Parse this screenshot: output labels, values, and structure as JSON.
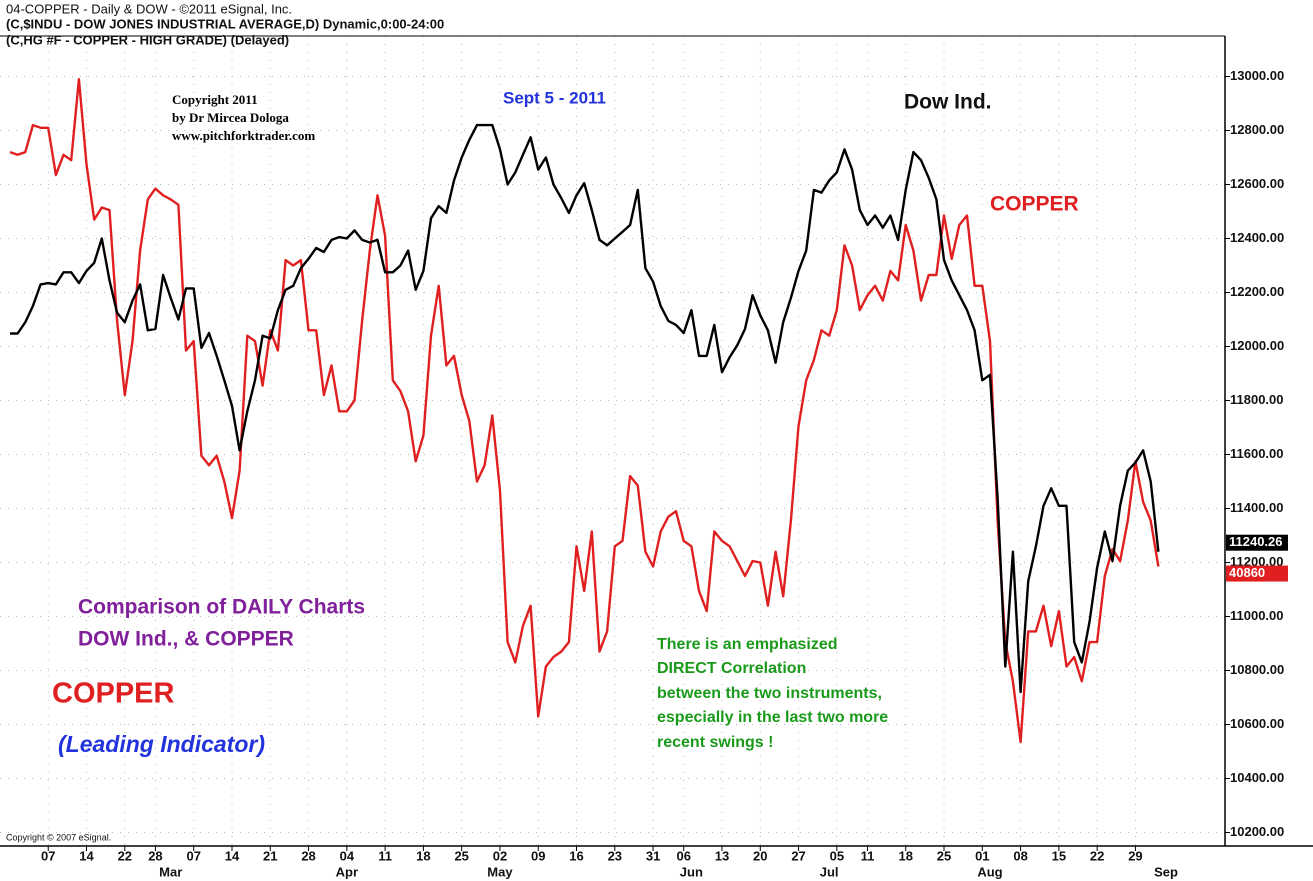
{
  "chart_data": {
    "type": "line",
    "header": [
      "04-COPPER - Daily & DOW - ©2011 eSignal, Inc.",
      "(C,$INDU - DOW JONES INDUSTRIAL AVERAGE,D) Dynamic,0:00-24:00",
      "(C,HG #F - COPPER - HIGH GRADE)  (Delayed)"
    ],
    "copyright_author": [
      "Copyright 2011",
      "by Dr Mircea Dologa",
      "www.pitchforktrader.com"
    ],
    "date_note": "Sept 5  - 2011",
    "dow_label": "Dow Ind.",
    "copper_label": "COPPER",
    "comparison": [
      "Comparison of DAILY Charts",
      "DOW Ind.,  &  COPPER"
    ],
    "copper_big": "COPPER",
    "leading": "(Leading Indicator)",
    "correlation_note": [
      "There is an emphasized",
      "DIRECT Correlation",
      "between the two instruments,",
      "especially in the last two more",
      "recent swings  !"
    ],
    "vendor_copyright": "Copyright © 2007 eSignal.",
    "last_labels": [
      {
        "label": "11240.26",
        "color": "#000000"
      },
      {
        "label": "40860",
        "color": "#e02020"
      }
    ],
    "xlim": [
      -1.3,
      158.7
    ],
    "xticks": [
      {
        "value": 5,
        "label": "07"
      },
      {
        "value": 10,
        "label": "14"
      },
      {
        "value": 15,
        "label": "22"
      },
      {
        "value": 19,
        "label": "28"
      },
      {
        "value": 24,
        "label": "07"
      },
      {
        "value": 29,
        "label": "14"
      },
      {
        "value": 34,
        "label": "21"
      },
      {
        "value": 39,
        "label": "28"
      },
      {
        "value": 44,
        "label": "04"
      },
      {
        "value": 49,
        "label": "11"
      },
      {
        "value": 54,
        "label": "18"
      },
      {
        "value": 59,
        "label": "25"
      },
      {
        "value": 64,
        "label": "02"
      },
      {
        "value": 69,
        "label": "09"
      },
      {
        "value": 74,
        "label": "16"
      },
      {
        "value": 79,
        "label": "23"
      },
      {
        "value": 84,
        "label": "31"
      },
      {
        "value": 88,
        "label": "06"
      },
      {
        "value": 93,
        "label": "13"
      },
      {
        "value": 98,
        "label": "20"
      },
      {
        "value": 103,
        "label": "27"
      },
      {
        "value": 108,
        "label": "05"
      },
      {
        "value": 112,
        "label": "11"
      },
      {
        "value": 117,
        "label": "18"
      },
      {
        "value": 122,
        "label": "25"
      },
      {
        "value": 127,
        "label": "01"
      },
      {
        "value": 132,
        "label": "08"
      },
      {
        "value": 137,
        "label": "15"
      },
      {
        "value": 142,
        "label": "22"
      },
      {
        "value": 147,
        "label": "29"
      }
    ],
    "months": [
      {
        "value": 21,
        "label": "Mar"
      },
      {
        "value": 44,
        "label": "Apr"
      },
      {
        "value": 64,
        "label": "May"
      },
      {
        "value": 89,
        "label": "Jun"
      },
      {
        "value": 107,
        "label": "Jul"
      },
      {
        "value": 128,
        "label": "Aug"
      },
      {
        "value": 151,
        "label": "Sep"
      }
    ],
    "ylim": [
      10150,
      13150
    ],
    "yticks": [
      {
        "value": 10200,
        "label": "10200.00"
      },
      {
        "value": 10400,
        "label": "10400.00"
      },
      {
        "value": 10600,
        "label": "10600.00"
      },
      {
        "value": 10800,
        "label": "10800.00"
      },
      {
        "value": 11000,
        "label": "11000.00"
      },
      {
        "value": 11200,
        "label": "11200.00"
      },
      {
        "value": 11400,
        "label": "11400.00"
      },
      {
        "value": 11600,
        "label": "11600.00"
      },
      {
        "value": 11800,
        "label": "11800.00"
      },
      {
        "value": 12000,
        "label": "12000.00"
      },
      {
        "value": 12200,
        "label": "12200.00"
      },
      {
        "value": 12400,
        "label": "12400.00"
      },
      {
        "value": 12600,
        "label": "12600.00"
      },
      {
        "value": 12800,
        "label": "12800.00"
      },
      {
        "value": 13000,
        "label": "13000.00"
      }
    ],
    "grid": true,
    "series": [
      {
        "color": "#000000",
        "values": [
          12048,
          12048,
          12090,
          12150,
          12230,
          12235,
          12230,
          12275,
          12275,
          12235,
          12280,
          12310,
          12400,
          12245,
          12125,
          12090,
          12170,
          12230,
          12060,
          12065,
          12265,
          12180,
          12100,
          12215,
          12215,
          11995,
          12050,
          11965,
          11875,
          11780,
          11615,
          11760,
          11875,
          12040,
          12030,
          12135,
          12210,
          12225,
          12290,
          12325,
          12365,
          12350,
          12395,
          12405,
          12400,
          12430,
          12395,
          12385,
          12395,
          12275,
          12275,
          12300,
          12355,
          12210,
          12280,
          12475,
          12520,
          12495,
          12615,
          12700,
          12765,
          12820,
          12820,
          12820,
          12730,
          12600,
          12645,
          12710,
          12775,
          12655,
          12700,
          12600,
          12550,
          12495,
          12560,
          12605,
          12505,
          12395,
          12375,
          12400,
          12425,
          12450,
          12580,
          12290,
          12240,
          12150,
          12095,
          12080,
          12050,
          12135,
          11965,
          11965,
          12080,
          11905,
          11960,
          12005,
          12065,
          12190,
          12115,
          12060,
          11940,
          12090,
          12180,
          12280,
          12355,
          12580,
          12570,
          12615,
          12645,
          12730,
          12655,
          12505,
          12450,
          12485,
          12440,
          12485,
          12395,
          12580,
          12720,
          12690,
          12625,
          12545,
          12320,
          12245,
          12190,
          12135,
          12060,
          11875,
          11895,
          11440,
          10815,
          11240,
          10720,
          11130,
          11260,
          11410,
          11475,
          11410,
          11410,
          10905,
          10830,
          10980,
          11180,
          11315,
          11205,
          11410,
          11540,
          11570,
          11615,
          11500,
          11240
        ]
      },
      {
        "color": "#e02020",
        "values": [
          12720,
          12710,
          12720,
          12820,
          12810,
          12810,
          12635,
          12710,
          12690,
          12990,
          12675,
          12470,
          12515,
          12505,
          12095,
          11820,
          12020,
          12355,
          12545,
          12585,
          12560,
          12545,
          12525,
          11985,
          12020,
          11595,
          11560,
          11595,
          11500,
          11365,
          11540,
          12040,
          12020,
          11855,
          12060,
          11985,
          12320,
          12300,
          12320,
          12060,
          12060,
          11820,
          11930,
          11760,
          11760,
          11800,
          12095,
          12355,
          12560,
          12410,
          11875,
          11835,
          11760,
          11575,
          11670,
          12040,
          12225,
          11930,
          11965,
          11820,
          11725,
          11500,
          11560,
          11745,
          11465,
          10905,
          10830,
          10965,
          11040,
          10630,
          10815,
          10850,
          10870,
          10905,
          11260,
          11095,
          11315,
          10870,
          10945,
          11260,
          11280,
          11520,
          11485,
          11240,
          11185,
          11315,
          11370,
          11390,
          11280,
          11260,
          11095,
          11020,
          11315,
          11280,
          11260,
          11205,
          11150,
          11205,
          11200,
          11040,
          11240,
          11075,
          11355,
          11705,
          11875,
          11950,
          12060,
          12040,
          12135,
          12375,
          12300,
          12135,
          12190,
          12225,
          12170,
          12280,
          12245,
          12450,
          12355,
          12170,
          12265,
          12265,
          12485,
          12325,
          12450,
          12485,
          12225,
          12225,
          12020,
          11355,
          10905,
          10760,
          10535,
          10945,
          10945,
          11040,
          10890,
          11020,
          10815,
          10850,
          10760,
          10905,
          10905,
          11150,
          11250,
          11205,
          11355,
          11575,
          11425,
          11355,
          11185
        ]
      }
    ]
  }
}
